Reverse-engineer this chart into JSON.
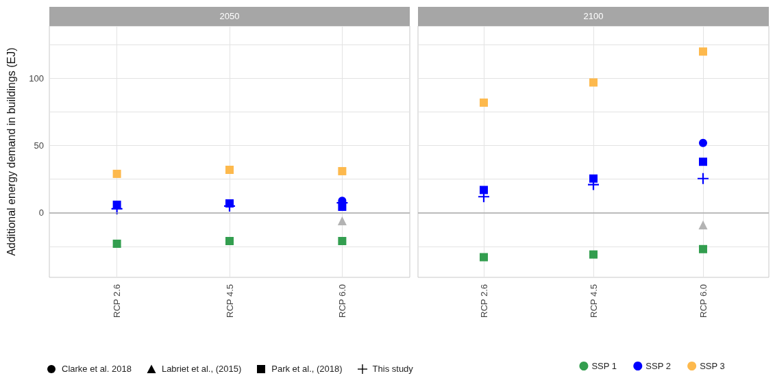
{
  "chart_data": [
    {
      "type": "scatter",
      "title": "2050",
      "ylabel": "Additional energy demand in buildings (EJ)",
      "categories": [
        "RCP 2.6",
        "RCP 4.5",
        "RCP 6.0"
      ],
      "ylim": [
        -48,
        139
      ],
      "yticks": [
        {
          "value": -25,
          "label": null
        },
        0,
        {
          "value": 25,
          "label": null
        },
        50,
        {
          "value": 75,
          "label": null
        },
        100,
        {
          "value": 125,
          "label": null
        }
      ],
      "grid": true,
      "legend": "bottom right",
      "ref_lines": [
        {
          "axis": "y",
          "value": 0,
          "color": "#aaaaaa"
        }
      ],
      "annotations": [
        "Clarke et al. 2018",
        "Labriet et al., (2015)",
        "Park et al., (2018)",
        "This study"
      ],
      "series": [
        {
          "marker": "circle",
          "color": "#0000ff",
          "values": [
            null,
            null,
            9
          ]
        },
        {
          "marker": "triangle",
          "color": "#b3b3b3",
          "values": [
            null,
            null,
            -6
          ]
        },
        {
          "name": "SSP 1",
          "marker": "square",
          "color": "#339e4f",
          "values": [
            -23,
            -21,
            -21
          ]
        },
        {
          "name": "SSP 2",
          "marker": "square",
          "color": "#0000ff",
          "values": [
            6,
            7,
            4.5
          ]
        },
        {
          "name": "SSP 3",
          "marker": "square",
          "color": "#fdb94d",
          "values": [
            29,
            32,
            31
          ]
        },
        {
          "marker": "cross",
          "color": "#0000ff",
          "values": [
            3,
            5,
            7.5
          ]
        }
      ]
    },
    {
      "type": "scatter",
      "title": "2100",
      "categories": [
        "RCP 2.6",
        "RCP 4.5",
        "RCP 6.0"
      ],
      "ylim": [
        -48,
        139
      ],
      "yticks": [
        {
          "value": -25,
          "label": null
        },
        0,
        {
          "value": 25,
          "label": null
        },
        50,
        {
          "value": 75,
          "label": null
        },
        100,
        {
          "value": 125,
          "label": null
        }
      ],
      "tick_labels": "x",
      "grid": true,
      "ref_lines": [
        {
          "axis": "y",
          "value": 0,
          "color": "#aaaaaa"
        }
      ],
      "series": [
        {
          "marker": "circle",
          "color": "#0000ff",
          "values": [
            null,
            null,
            52
          ]
        },
        {
          "marker": "triangle",
          "color": "#b3b3b3",
          "values": [
            null,
            null,
            -9
          ]
        },
        {
          "marker": "square",
          "color": "#339e4f",
          "values": [
            -33,
            -31,
            -27
          ]
        },
        {
          "marker": "square",
          "color": "#0000ff",
          "values": [
            17,
            25.5,
            38
          ]
        },
        {
          "marker": "square",
          "color": "#fdb94d",
          "values": [
            82,
            97,
            120
          ]
        },
        {
          "marker": "cross",
          "color": "#0000ff",
          "values": [
            12,
            21,
            25.5
          ]
        }
      ]
    }
  ]
}
